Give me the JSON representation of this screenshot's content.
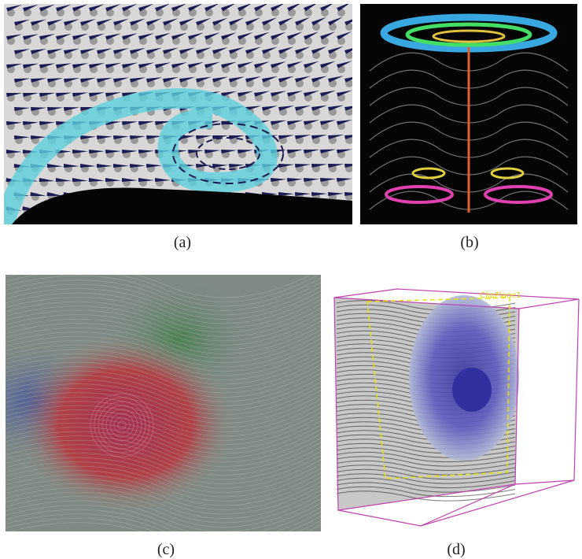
{
  "panels": [
    {
      "caption": "(a)"
    },
    {
      "caption": "(b)"
    },
    {
      "caption": "(c)"
    },
    {
      "caption": "(d)",
      "label": "ClipPlane1"
    }
  ]
}
